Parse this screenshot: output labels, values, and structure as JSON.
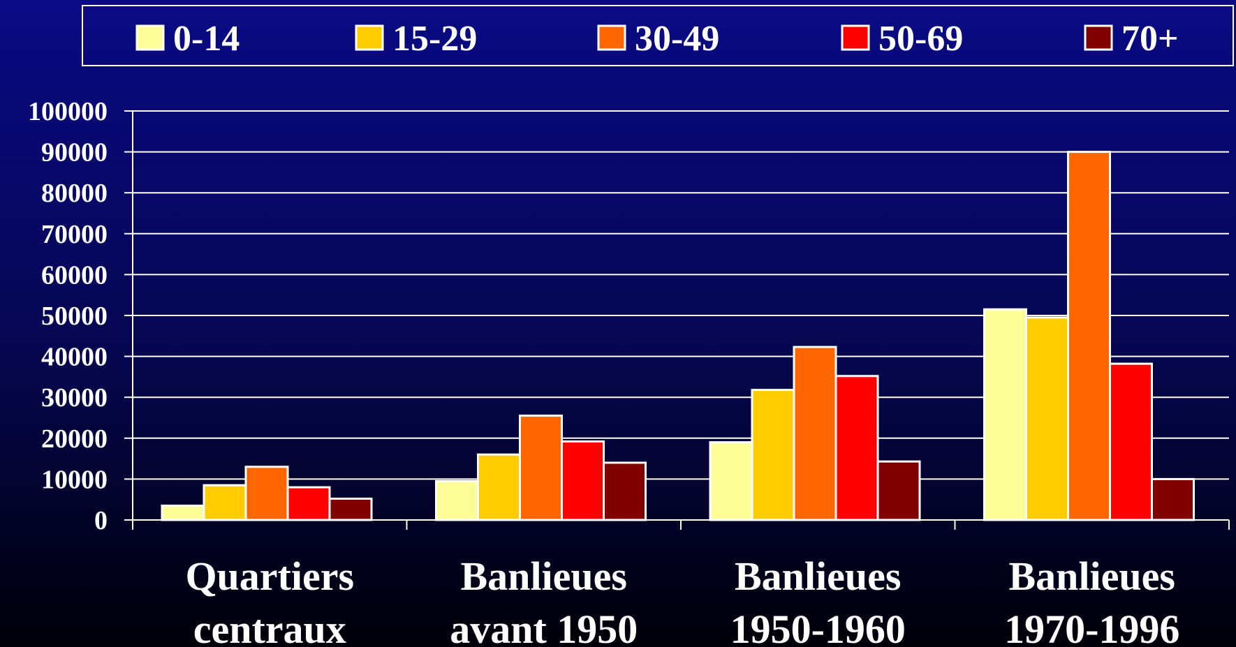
{
  "chart_data": {
    "type": "bar",
    "title": "",
    "xlabel": "",
    "ylabel": "",
    "ylim": [
      0,
      100000
    ],
    "yticks": [
      "0",
      "10000",
      "20000",
      "30000",
      "40000",
      "50000",
      "60000",
      "70000",
      "80000",
      "90000",
      "100000"
    ],
    "grid": true,
    "legend_position": "top",
    "categories": [
      [
        "Quartiers",
        "centraux"
      ],
      [
        "Banlieues",
        "avant 1950"
      ],
      [
        "Banlieues",
        "1950-1960"
      ],
      [
        "Banlieues",
        "1970-1996"
      ]
    ],
    "series": [
      {
        "name": "0-14",
        "color": "#ffff99",
        "values": [
          3500,
          9500,
          19000,
          51500
        ]
      },
      {
        "name": "15-29",
        "color": "#ffcc00",
        "values": [
          8500,
          16000,
          31800,
          49500
        ]
      },
      {
        "name": "30-49",
        "color": "#ff6600",
        "values": [
          13000,
          25500,
          42300,
          90000
        ]
      },
      {
        "name": "50-69",
        "color": "#ff0000",
        "values": [
          8000,
          19200,
          35200,
          38200
        ]
      },
      {
        "name": "70+",
        "color": "#800000",
        "values": [
          5200,
          14000,
          14300,
          10000
        ]
      }
    ]
  }
}
